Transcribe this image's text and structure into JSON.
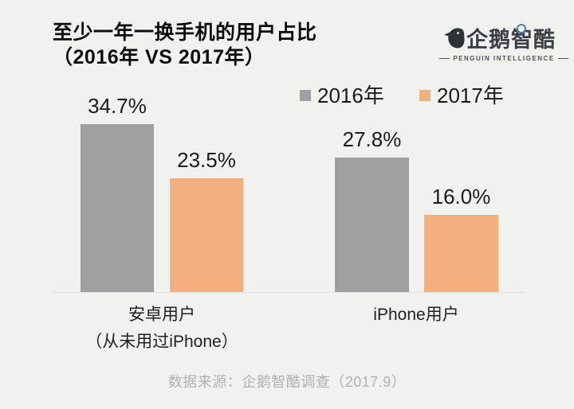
{
  "header": {
    "title_line1": "至少一年一换手机的用户占比",
    "title_line2": "（2016年 VS 2017年）"
  },
  "logo": {
    "name": "企鹅智酷",
    "subtitle": "PENGUIN INTELLIGENCE"
  },
  "chart_data": {
    "type": "bar",
    "title": "至少一年一换手机的用户占比（2016年 VS 2017年）",
    "categories": [
      "安卓用户（从未用过iPhone）",
      "iPhone用户"
    ],
    "category_labels": [
      [
        "安卓用户",
        "（从未用过iPhone）"
      ],
      [
        "iPhone用户"
      ]
    ],
    "series": [
      {
        "name": "2016年",
        "color": "#9f9f9f",
        "values": [
          34.7,
          27.8
        ],
        "labels": [
          "34.7%",
          "27.8%"
        ]
      },
      {
        "name": "2017年",
        "color": "#f3af7d",
        "values": [
          23.5,
          16.0
        ],
        "labels": [
          "23.5%",
          "16.0%"
        ]
      }
    ],
    "unit": "%",
    "value_axis": {
      "min": 0,
      "max": 40,
      "visible": false
    },
    "gridlines": false,
    "legend_position": "top-right",
    "background": "#f1f2ee"
  },
  "footer": {
    "source": "数据来源：企鹅智酷调查（2017.9）"
  }
}
